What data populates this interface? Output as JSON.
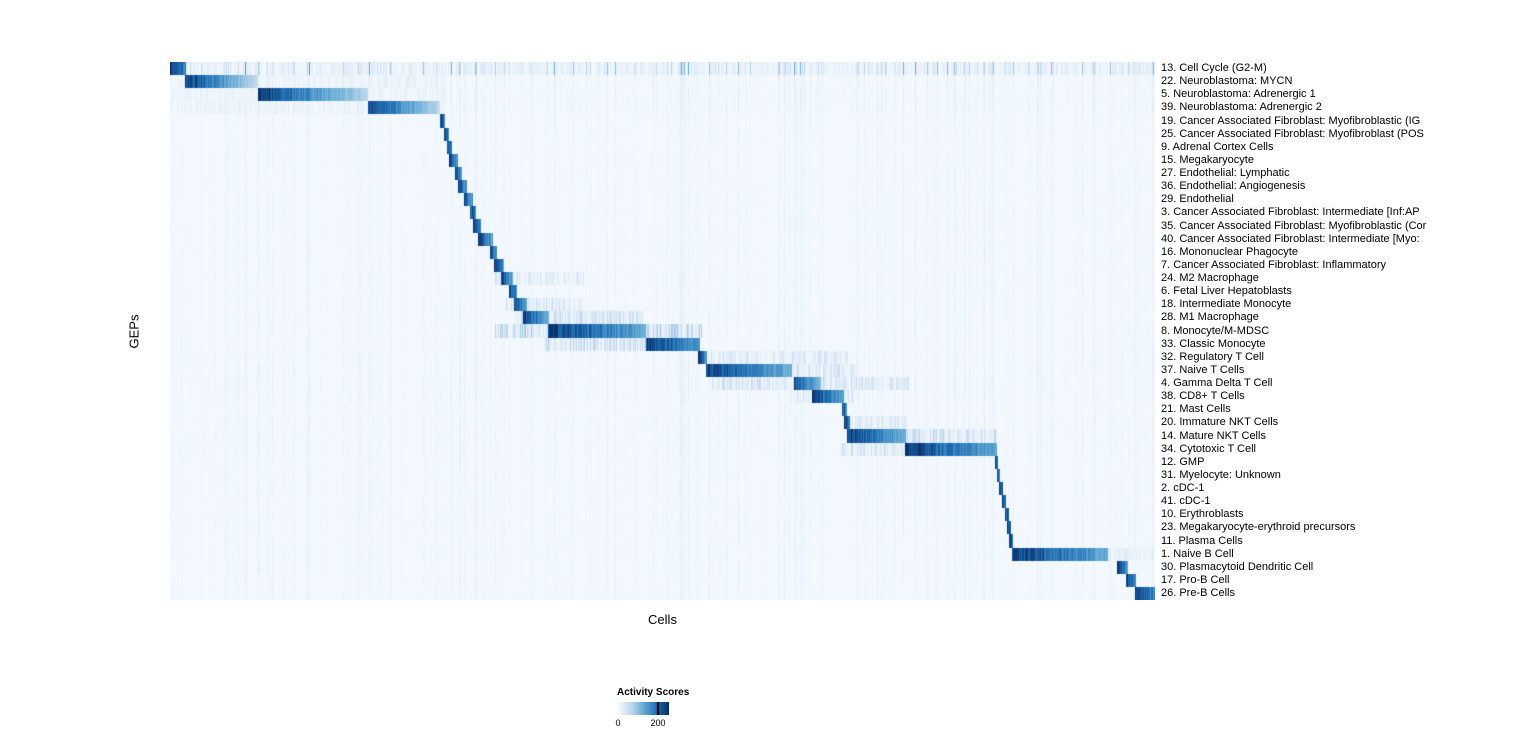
{
  "chart_data": {
    "type": "heatmap",
    "title": "",
    "xlabel": "Cells",
    "ylabel": "GEPs",
    "legend": {
      "title": "Activity Scores",
      "tick_min": "0",
      "tick_max": "200",
      "range": [
        0,
        200
      ]
    },
    "colormap": [
      [
        0.0,
        "#f7fbff"
      ],
      [
        0.25,
        "#c6dbef"
      ],
      [
        0.5,
        "#6baed6"
      ],
      [
        0.75,
        "#2171b5"
      ],
      [
        1.0,
        "#08306b"
      ]
    ],
    "noise_seed": 42,
    "n_columns": 985,
    "rows": [
      {
        "label": "13. Cell Cycle (G2-M)",
        "start": 0.0,
        "end": 0.016,
        "peak": 1.0,
        "fade": 0.3,
        "noise": 0.6,
        "spill": [
          0.0,
          1.0,
          0.12
        ]
      },
      {
        "label": "22. Neuroblastoma: MYCN",
        "start": 0.015,
        "end": 0.089,
        "peak": 1.0,
        "fade": 0.75,
        "noise": 0.12,
        "spill": [
          0.0,
          0.28,
          0.1
        ]
      },
      {
        "label": "5. Neuroblastoma: Adrenergic 1",
        "start": 0.089,
        "end": 0.201,
        "peak": 1.0,
        "fade": 0.7,
        "noise": 0.12,
        "spill": [
          0.0,
          0.28,
          0.1
        ]
      },
      {
        "label": "39. Neuroblastoma: Adrenergic 2",
        "start": 0.201,
        "end": 0.274,
        "peak": 0.95,
        "fade": 0.7,
        "noise": 0.12,
        "spill": [
          0.0,
          0.28,
          0.1
        ]
      },
      {
        "label": "19. Cancer Associated Fibroblast: Myofibroblastic (IG",
        "start": 0.274,
        "end": 0.279,
        "peak": 1.0,
        "fade": 0.3,
        "noise": 0.07,
        "spill": null
      },
      {
        "label": "25. Cancer Associated Fibroblast: Myofibroblast (POS",
        "start": 0.278,
        "end": 0.283,
        "peak": 1.0,
        "fade": 0.3,
        "noise": 0.07,
        "spill": null
      },
      {
        "label": "9. Adrenal Cortex Cells",
        "start": 0.281,
        "end": 0.286,
        "peak": 1.0,
        "fade": 0.3,
        "noise": 0.06,
        "spill": null
      },
      {
        "label": "15. Megakaryocyte",
        "start": 0.283,
        "end": 0.292,
        "peak": 1.0,
        "fade": 0.4,
        "noise": 0.07,
        "spill": null
      },
      {
        "label": "27. Endothelial: Lymphatic",
        "start": 0.289,
        "end": 0.296,
        "peak": 1.0,
        "fade": 0.4,
        "noise": 0.07,
        "spill": null
      },
      {
        "label": "36. Endothelial: Angiogenesis",
        "start": 0.292,
        "end": 0.301,
        "peak": 1.0,
        "fade": 0.4,
        "noise": 0.07,
        "spill": null
      },
      {
        "label": "29. Endothelial",
        "start": 0.298,
        "end": 0.307,
        "peak": 1.0,
        "fade": 0.4,
        "noise": 0.07,
        "spill": null
      },
      {
        "label": "3. Cancer Associated Fibroblast: Intermediate [Inf:AP",
        "start": 0.304,
        "end": 0.31,
        "peak": 1.0,
        "fade": 0.3,
        "noise": 0.07,
        "spill": null
      },
      {
        "label": "35. Cancer Associated Fibroblast: Myofibroblastic (Cor",
        "start": 0.307,
        "end": 0.316,
        "peak": 1.0,
        "fade": 0.4,
        "noise": 0.07,
        "spill": null
      },
      {
        "label": "40. Cancer Associated Fibroblast: Intermediate [Myo:",
        "start": 0.313,
        "end": 0.328,
        "peak": 1.0,
        "fade": 0.45,
        "noise": 0.07,
        "spill": null
      },
      {
        "label": "16. Mononuclear Phagocyte",
        "start": 0.325,
        "end": 0.332,
        "peak": 1.0,
        "fade": 0.35,
        "noise": 0.08,
        "spill": null
      },
      {
        "label": "7. Cancer Associated Fibroblast: Inflammatory",
        "start": 0.329,
        "end": 0.339,
        "peak": 1.0,
        "fade": 0.4,
        "noise": 0.07,
        "spill": null
      },
      {
        "label": "24. M2 Macrophage",
        "start": 0.336,
        "end": 0.348,
        "peak": 1.0,
        "fade": 0.45,
        "noise": 0.08,
        "spill": [
          0.33,
          0.42,
          0.2
        ]
      },
      {
        "label": "6. Fetal Liver Hepatoblasts",
        "start": 0.344,
        "end": 0.352,
        "peak": 1.0,
        "fade": 0.35,
        "noise": 0.07,
        "spill": null
      },
      {
        "label": "18. Intermediate Monocyte",
        "start": 0.349,
        "end": 0.362,
        "peak": 1.0,
        "fade": 0.45,
        "noise": 0.08,
        "spill": [
          0.34,
          0.42,
          0.25
        ]
      },
      {
        "label": "28. M1 Macrophage",
        "start": 0.358,
        "end": 0.385,
        "peak": 1.0,
        "fade": 0.5,
        "noise": 0.08,
        "spill": [
          0.35,
          0.48,
          0.3
        ]
      },
      {
        "label": "8. Monocyte/M-MDSC",
        "start": 0.384,
        "end": 0.483,
        "peak": 1.0,
        "fade": 0.45,
        "noise": 0.08,
        "spill": [
          0.33,
          0.54,
          0.35
        ]
      },
      {
        "label": "33. Classic Monocyte",
        "start": 0.483,
        "end": 0.538,
        "peak": 1.0,
        "fade": 0.4,
        "noise": 0.08,
        "spill": [
          0.38,
          0.49,
          0.3
        ]
      },
      {
        "label": "32. Regulatory T Cell",
        "start": 0.536,
        "end": 0.545,
        "peak": 1.0,
        "fade": 0.35,
        "noise": 0.09,
        "spill": [
          0.545,
          0.69,
          0.2
        ]
      },
      {
        "label": "37. Naive T Cells",
        "start": 0.544,
        "end": 0.632,
        "peak": 1.0,
        "fade": 0.5,
        "noise": 0.09,
        "spill": [
          0.63,
          0.7,
          0.25
        ]
      },
      {
        "label": "4. Gamma Delta T Cell",
        "start": 0.634,
        "end": 0.661,
        "peak": 0.9,
        "fade": 0.5,
        "noise": 0.1,
        "spill": [
          0.55,
          0.75,
          0.25
        ]
      },
      {
        "label": "38. CD8+ T Cells",
        "start": 0.652,
        "end": 0.684,
        "peak": 1.0,
        "fade": 0.45,
        "noise": 0.09,
        "spill": [
          0.63,
          0.7,
          0.2
        ]
      },
      {
        "label": "21. Mast Cells",
        "start": 0.682,
        "end": 0.687,
        "peak": 1.0,
        "fade": 0.3,
        "noise": 0.07,
        "spill": null
      },
      {
        "label": "20. Immature NKT Cells",
        "start": 0.684,
        "end": 0.691,
        "peak": 1.0,
        "fade": 0.3,
        "noise": 0.09,
        "spill": [
          0.69,
          0.75,
          0.2
        ]
      },
      {
        "label": "14. Mature NKT Cells",
        "start": 0.688,
        "end": 0.747,
        "peak": 1.0,
        "fade": 0.5,
        "noise": 0.09,
        "spill": [
          0.7,
          0.84,
          0.3
        ]
      },
      {
        "label": "34. Cytotoxic T Cell",
        "start": 0.746,
        "end": 0.84,
        "peak": 1.0,
        "fade": 0.45,
        "noise": 0.09,
        "spill": [
          0.68,
          0.75,
          0.25
        ]
      },
      {
        "label": "12. GMP",
        "start": 0.838,
        "end": 0.841,
        "peak": 1.0,
        "fade": 0.2,
        "noise": 0.07,
        "spill": null
      },
      {
        "label": "31. Myelocyte: Unknown",
        "start": 0.84,
        "end": 0.843,
        "peak": 1.0,
        "fade": 0.2,
        "noise": 0.08,
        "spill": null
      },
      {
        "label": "2. cDC-1",
        "start": 0.842,
        "end": 0.846,
        "peak": 1.0,
        "fade": 0.2,
        "noise": 0.08,
        "spill": null
      },
      {
        "label": "41. cDC-1",
        "start": 0.845,
        "end": 0.849,
        "peak": 1.0,
        "fade": 0.2,
        "noise": 0.07,
        "spill": null
      },
      {
        "label": "10. Erythroblasts",
        "start": 0.848,
        "end": 0.852,
        "peak": 1.0,
        "fade": 0.2,
        "noise": 0.08,
        "spill": null
      },
      {
        "label": "23. Megakaryocyte-erythroid precursors",
        "start": 0.85,
        "end": 0.854,
        "peak": 1.0,
        "fade": 0.2,
        "noise": 0.08,
        "spill": null
      },
      {
        "label": "11. Plasma Cells",
        "start": 0.852,
        "end": 0.856,
        "peak": 1.0,
        "fade": 0.2,
        "noise": 0.07,
        "spill": null
      },
      {
        "label": "1. Naive B Cell",
        "start": 0.855,
        "end": 0.953,
        "peak": 1.0,
        "fade": 0.45,
        "noise": 0.08,
        "spill": [
          0.95,
          1.0,
          0.15
        ]
      },
      {
        "label": "30. Plasmacytoid Dendritic Cell",
        "start": 0.962,
        "end": 0.973,
        "peak": 1.0,
        "fade": 0.35,
        "noise": 0.08,
        "spill": null
      },
      {
        "label": "17. Pro-B Cell",
        "start": 0.971,
        "end": 0.981,
        "peak": 1.0,
        "fade": 0.35,
        "noise": 0.07,
        "spill": null
      },
      {
        "label": "26. Pre-B Cells",
        "start": 0.98,
        "end": 1.0,
        "peak": 1.0,
        "fade": 0.3,
        "noise": 0.07,
        "spill": null
      }
    ]
  }
}
